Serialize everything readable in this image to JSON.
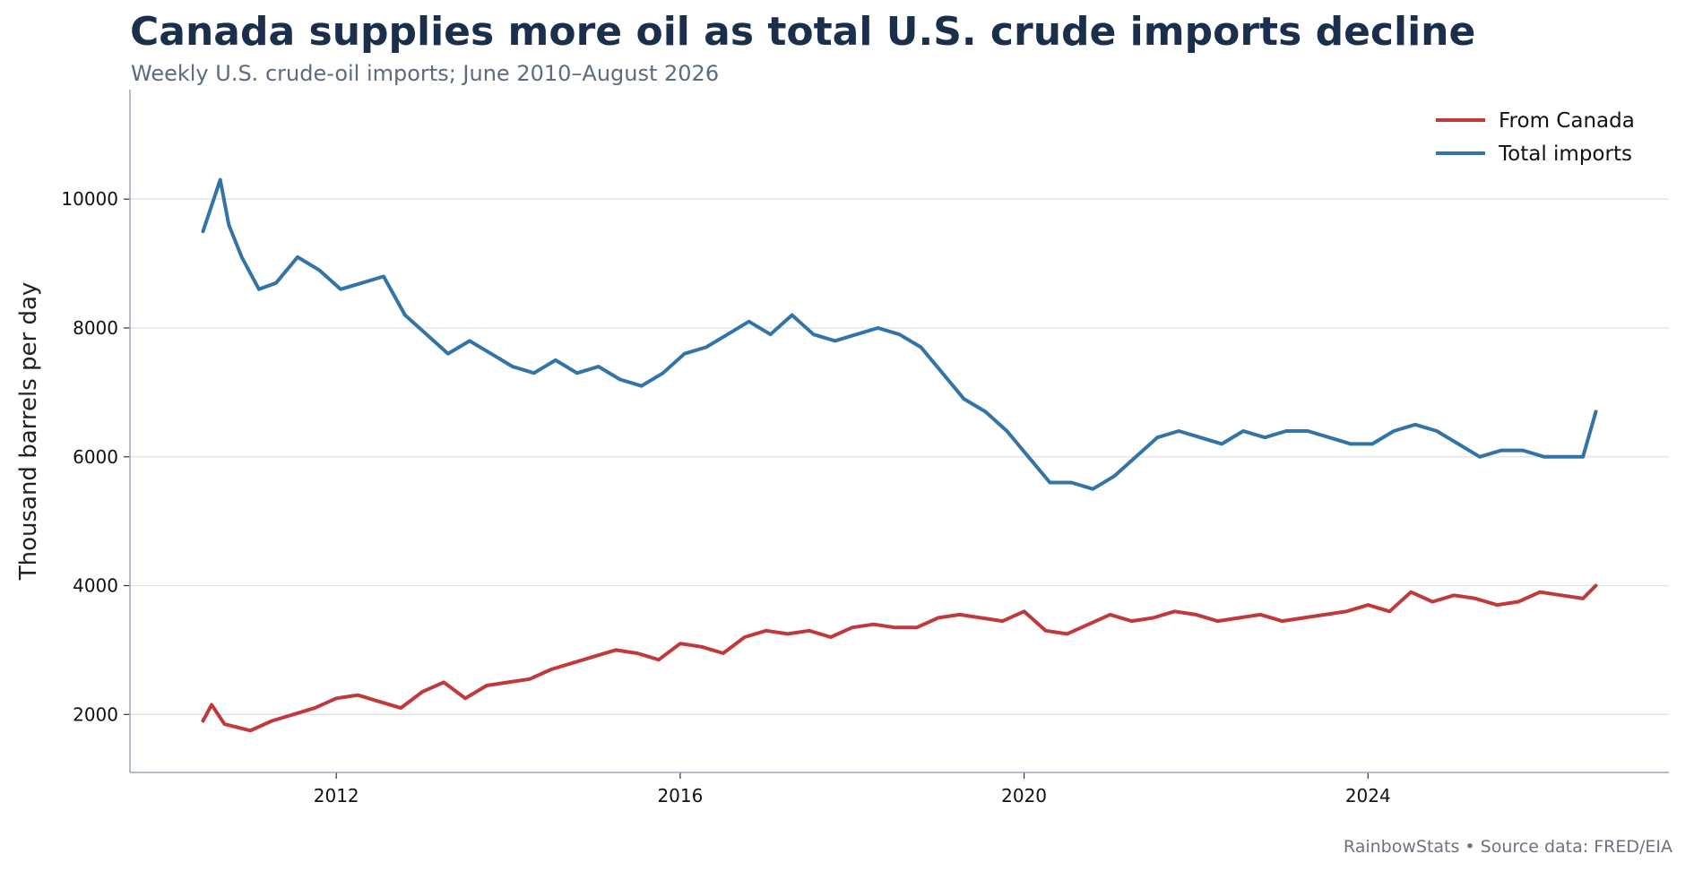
{
  "title": "Canada supplies more oil as total U.S. crude imports decline",
  "subtitle": "Weekly U.S. crude-oil imports; June 2010–August 2026",
  "credit": "RainbowStats • Source data: FRED/EIA",
  "colors": {
    "canada": "#c0393b",
    "total": "#3274a6",
    "grid": "#dfe3e8",
    "axis": "#9aa8b8"
  },
  "chart_data": {
    "type": "line",
    "title": "Canada supplies more oil as total U.S. crude imports decline",
    "subtitle": "Weekly U.S. crude-oil imports; June 2010–August 2026",
    "xlabel": "",
    "ylabel": "Thousand barrels per day",
    "xlim": [
      2009.6,
      2027.5
    ],
    "ylim": [
      1100,
      11700
    ],
    "x_ticks": [
      2012,
      2016,
      2020,
      2024
    ],
    "x_tick_labels": [
      "2012",
      "2016",
      "2020",
      "2024"
    ],
    "y_ticks": [
      2000,
      4000,
      6000,
      8000,
      10000
    ],
    "y_tick_labels": [
      "2000",
      "4000",
      "6000",
      "8000",
      "10000"
    ],
    "grid": "horizontal",
    "legend_position": "top-right",
    "series": [
      {
        "name": "From Canada",
        "color": "#c0393b",
        "x": [
          2010.45,
          2010.55,
          2010.7,
          2010.85,
          2011.0,
          2011.25,
          2011.5,
          2011.75,
          2012.0,
          2012.25,
          2012.5,
          2012.75,
          2013.0,
          2013.25,
          2013.5,
          2013.75,
          2014.0,
          2014.25,
          2014.5,
          2014.75,
          2015.0,
          2015.25,
          2015.5,
          2015.75,
          2016.0,
          2016.25,
          2016.5,
          2016.75,
          2017.0,
          2017.25,
          2017.5,
          2017.75,
          2018.0,
          2018.25,
          2018.5,
          2018.75,
          2019.0,
          2019.25,
          2019.5,
          2019.75,
          2020.0,
          2020.25,
          2020.5,
          2020.75,
          2021.0,
          2021.25,
          2021.5,
          2021.75,
          2022.0,
          2022.25,
          2022.5,
          2022.75,
          2023.0,
          2023.25,
          2023.5,
          2023.75,
          2024.0,
          2024.25,
          2024.5,
          2024.75,
          2025.0,
          2025.25,
          2025.5,
          2025.75,
          2026.0,
          2026.25,
          2026.5,
          2026.65
        ],
        "y": [
          1900,
          2150,
          1850,
          1800,
          1750,
          1900,
          2000,
          2100,
          2250,
          2300,
          2200,
          2100,
          2350,
          2500,
          2250,
          2450,
          2500,
          2550,
          2700,
          2800,
          2900,
          3000,
          2950,
          2850,
          3100,
          3050,
          2950,
          3200,
          3300,
          3250,
          3300,
          3200,
          3350,
          3400,
          3350,
          3350,
          3500,
          3550,
          3500,
          3450,
          3600,
          3300,
          3250,
          3400,
          3550,
          3450,
          3500,
          3600,
          3550,
          3450,
          3500,
          3550,
          3450,
          3500,
          3550,
          3600,
          3700,
          3600,
          3900,
          3750,
          3850,
          3800,
          3700,
          3750,
          3900,
          3850,
          3800,
          4000
        ]
      },
      {
        "name": "Total imports",
        "color": "#3274a6",
        "x": [
          2010.45,
          2010.55,
          2010.65,
          2010.75,
          2010.9,
          2011.1,
          2011.3,
          2011.55,
          2011.8,
          2012.05,
          2012.3,
          2012.55,
          2012.8,
          2013.05,
          2013.3,
          2013.55,
          2013.8,
          2014.05,
          2014.3,
          2014.55,
          2014.8,
          2015.05,
          2015.3,
          2015.55,
          2015.8,
          2016.05,
          2016.3,
          2016.55,
          2016.8,
          2017.05,
          2017.3,
          2017.55,
          2017.8,
          2018.05,
          2018.3,
          2018.55,
          2018.8,
          2019.05,
          2019.3,
          2019.55,
          2019.8,
          2020.05,
          2020.3,
          2020.55,
          2020.8,
          2021.05,
          2021.3,
          2021.55,
          2021.8,
          2022.05,
          2022.3,
          2022.55,
          2022.8,
          2023.05,
          2023.3,
          2023.55,
          2023.8,
          2024.05,
          2024.3,
          2024.55,
          2024.8,
          2025.05,
          2025.3,
          2025.55,
          2025.8,
          2026.05,
          2026.3,
          2026.5,
          2026.65
        ],
        "y": [
          9500,
          9900,
          10300,
          9600,
          9100,
          8600,
          8700,
          9100,
          8900,
          8600,
          8700,
          8800,
          8200,
          7900,
          7600,
          7800,
          7600,
          7400,
          7300,
          7500,
          7300,
          7400,
          7200,
          7100,
          7300,
          7600,
          7700,
          7900,
          8100,
          7900,
          8200,
          7900,
          7800,
          7900,
          8000,
          7900,
          7700,
          7300,
          6900,
          6700,
          6400,
          6000,
          5600,
          5600,
          5500,
          5700,
          6000,
          6300,
          6400,
          6300,
          6200,
          6400,
          6300,
          6400,
          6400,
          6300,
          6200,
          6200,
          6400,
          6500,
          6400,
          6200,
          6000,
          6100,
          6100,
          6000,
          6000,
          6000,
          6700
        ]
      }
    ]
  }
}
